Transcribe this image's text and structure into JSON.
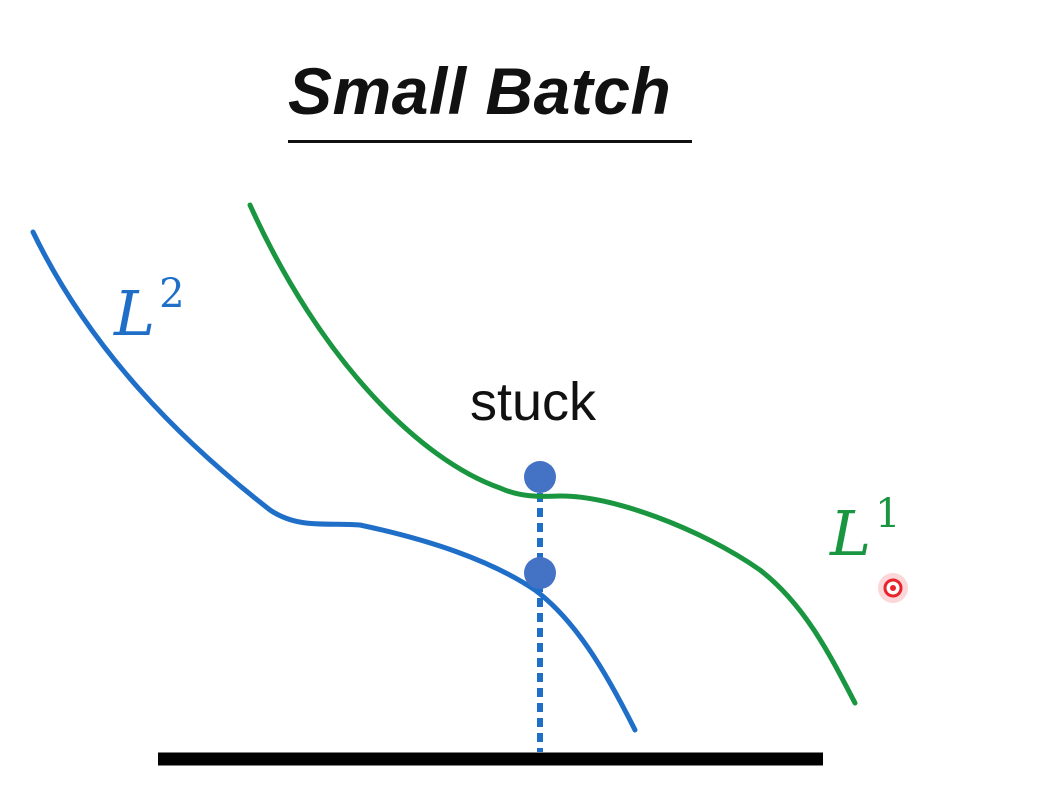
{
  "title": "Small Batch",
  "annotation": "stuck",
  "curves": {
    "l1": {
      "base": "L",
      "sup": "1",
      "color": "#1a9641"
    },
    "l2": {
      "base": "L",
      "sup": "2",
      "color": "#1f6fc8"
    }
  },
  "colors": {
    "point": "#4472c4",
    "dotted_line": "#1f6fc8",
    "baseline": "#000000",
    "cursor": "#e8242b"
  },
  "icons": {
    "cursor": "red-cursor-dot"
  }
}
